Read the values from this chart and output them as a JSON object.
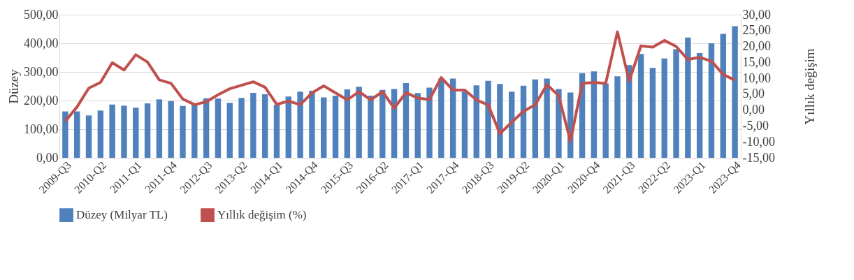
{
  "chart_data": {
    "type": "bar",
    "xlabel": null,
    "ylabel": "Düzey",
    "y2label": "Yıllık değişim",
    "categories": [
      "2009-Q3",
      null,
      null,
      "2010-Q2",
      null,
      null,
      "2011-Q1",
      null,
      null,
      "2011-Q4",
      null,
      null,
      "2012-Q3",
      null,
      null,
      "2013-Q2",
      null,
      null,
      "2014-Q1",
      null,
      null,
      "2014-Q4",
      null,
      null,
      "2015-Q3",
      null,
      null,
      "2016-Q2",
      null,
      null,
      "2017-Q1",
      null,
      null,
      "2017-Q4",
      null,
      null,
      "2018-Q3",
      null,
      null,
      "2019-Q2",
      null,
      null,
      "2020-Q1",
      null,
      null,
      "2020-Q4",
      null,
      null,
      "2021-Q3",
      null,
      null,
      "2022-Q2",
      null,
      null,
      "2023-Q1",
      null,
      null,
      "2023-Q4"
    ],
    "series": [
      {
        "name": "Düzey (Milyar TL)",
        "color": "#4f81bd",
        "values": [
          162,
          162,
          148,
          165,
          186,
          182,
          175,
          190,
          204,
          198,
          181,
          184,
          208,
          207,
          192,
          209,
          227,
          222,
          185,
          214,
          231,
          234,
          211,
          217,
          239,
          248,
          217,
          237,
          240,
          261,
          226,
          245,
          277,
          277,
          231,
          253,
          269,
          258,
          231,
          252,
          274,
          277,
          240,
          228,
          296,
          302,
          260,
          285,
          324,
          363,
          314,
          347,
          379,
          420,
          366,
          400,
          433,
          460
        ]
      },
      {
        "name": "Yıllık değişim (%)",
        "type": "line",
        "axis": "y2",
        "color": "#c0504d",
        "values": [
          -3.5,
          1.0,
          6.9,
          8.7,
          14.9,
          12.6,
          17.4,
          15.1,
          9.5,
          8.4,
          3.5,
          1.7,
          2.6,
          4.8,
          6.7,
          7.8,
          8.9,
          7.2,
          1.8,
          2.8,
          1.7,
          5.4,
          7.6,
          5.4,
          3.2,
          5.8,
          3.2,
          5.8,
          0.6,
          5.5,
          3.8,
          3.3,
          10.2,
          6.3,
          6.3,
          3.2,
          1.6,
          -7.4,
          -3.8,
          -0.4,
          1.7,
          8.0,
          4.5,
          -9.8,
          8.4,
          8.7,
          8.4,
          24.6,
          9.1,
          20.2,
          19.8,
          21.9,
          20.0,
          15.9,
          16.6,
          15.4,
          11.2,
          9.4
        ]
      }
    ],
    "ylim": [
      0,
      500
    ],
    "yticks": [
      {
        "value": 0,
        "label": "0,00"
      },
      {
        "value": 100,
        "label": "100,00"
      },
      {
        "value": 200,
        "label": "200,00"
      },
      {
        "value": 300,
        "label": "300,00"
      },
      {
        "value": 400,
        "label": "400,00"
      },
      {
        "value": 500,
        "label": "500,00"
      }
    ],
    "y2lim": [
      -15,
      30
    ],
    "y2ticks": [
      {
        "value": -15,
        "label": "-15,00"
      },
      {
        "value": -10,
        "label": "-10,00"
      },
      {
        "value": -5,
        "label": "-5,00"
      },
      {
        "value": 0,
        "label": "0,00"
      },
      {
        "value": 5,
        "label": "5,00"
      },
      {
        "value": 10,
        "label": "10,00"
      },
      {
        "value": 15,
        "label": "15,00"
      },
      {
        "value": 20,
        "label": "20,00"
      },
      {
        "value": 25,
        "label": "25,00"
      },
      {
        "value": 30,
        "label": "30,00"
      }
    ],
    "grid": "y",
    "legend": "bottom",
    "marker": "none",
    "line_style": "solid"
  }
}
